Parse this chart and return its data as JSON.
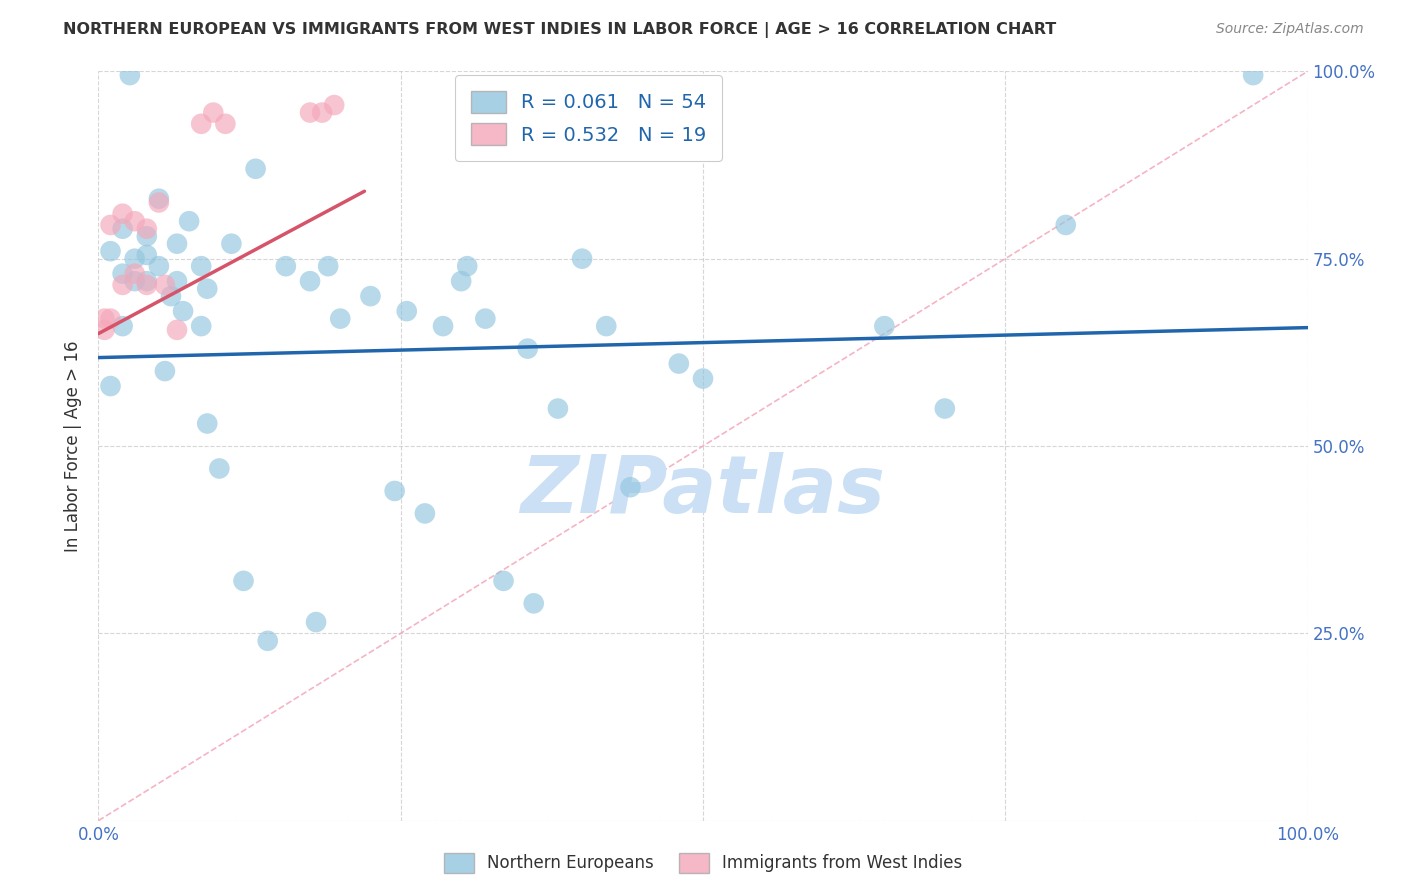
{
  "title": "NORTHERN EUROPEAN VS IMMIGRANTS FROM WEST INDIES IN LABOR FORCE | AGE > 16 CORRELATION CHART",
  "source": "Source: ZipAtlas.com",
  "ylabel": "In Labor Force | Age > 16",
  "xlim": [
    0.0,
    1.0
  ],
  "ylim": [
    0.0,
    1.0
  ],
  "yticks": [
    0.0,
    0.25,
    0.5,
    0.75,
    1.0
  ],
  "ytick_labels_right": [
    "",
    "25.0%",
    "50.0%",
    "75.0%",
    "100.0%"
  ],
  "xticks": [
    0.0,
    0.25,
    0.5,
    0.75,
    1.0
  ],
  "xtick_labels": [
    "0.0%",
    "",
    "",
    "",
    "100.0%"
  ],
  "blue_scatter_x": [
    0.026,
    0.05,
    0.075,
    0.02,
    0.04,
    0.065,
    0.01,
    0.03,
    0.05,
    0.085,
    0.02,
    0.04,
    0.065,
    0.09,
    0.11,
    0.13,
    0.155,
    0.175,
    0.19,
    0.225,
    0.255,
    0.285,
    0.305,
    0.3,
    0.32,
    0.355,
    0.38,
    0.4,
    0.42,
    0.48,
    0.5,
    0.65,
    0.7,
    0.8,
    0.955,
    0.01,
    0.02,
    0.03,
    0.04,
    0.055,
    0.06,
    0.07,
    0.085,
    0.09,
    0.1,
    0.12,
    0.14,
    0.18,
    0.2,
    0.245,
    0.27,
    0.335,
    0.36,
    0.44
  ],
  "blue_scatter_y": [
    0.995,
    0.83,
    0.8,
    0.79,
    0.78,
    0.77,
    0.76,
    0.75,
    0.74,
    0.74,
    0.73,
    0.72,
    0.72,
    0.71,
    0.77,
    0.87,
    0.74,
    0.72,
    0.74,
    0.7,
    0.68,
    0.66,
    0.74,
    0.72,
    0.67,
    0.63,
    0.55,
    0.75,
    0.66,
    0.61,
    0.59,
    0.66,
    0.55,
    0.795,
    0.995,
    0.58,
    0.66,
    0.72,
    0.755,
    0.6,
    0.7,
    0.68,
    0.66,
    0.53,
    0.47,
    0.32,
    0.24,
    0.265,
    0.67,
    0.44,
    0.41,
    0.32,
    0.29,
    0.445
  ],
  "pink_scatter_x": [
    0.005,
    0.01,
    0.02,
    0.03,
    0.04,
    0.05,
    0.02,
    0.03,
    0.04,
    0.055,
    0.085,
    0.095,
    0.105,
    0.175,
    0.185,
    0.195,
    0.005,
    0.01,
    0.065
  ],
  "pink_scatter_y": [
    0.655,
    0.795,
    0.81,
    0.8,
    0.79,
    0.825,
    0.715,
    0.73,
    0.715,
    0.715,
    0.93,
    0.945,
    0.93,
    0.945,
    0.945,
    0.955,
    0.67,
    0.67,
    0.655
  ],
  "blue_line_x": [
    0.0,
    1.0
  ],
  "blue_line_y": [
    0.618,
    0.658
  ],
  "pink_line_x": [
    0.0,
    0.22
  ],
  "pink_line_y": [
    0.65,
    0.84
  ],
  "diag_line_x": [
    0.0,
    1.0
  ],
  "diag_line_y": [
    0.0,
    1.0
  ],
  "legend_r1": "R = 0.061",
  "legend_n1": "N = 54",
  "legend_r2": "R = 0.532",
  "legend_n2": "N = 19",
  "legend_label_blue": "Northern Europeans",
  "legend_label_pink": "Immigrants from West Indies",
  "blue_color": "#92c5de",
  "pink_color": "#f4a7b9",
  "blue_line_color": "#2166ac",
  "pink_line_color": "#d6546a",
  "diag_line_color": "#f4a7b9",
  "grid_color": "#bbbbbb",
  "right_axis_color": "#4472c4",
  "watermark_color": "#cce0f5",
  "title_color": "#333333",
  "source_color": "#888888"
}
